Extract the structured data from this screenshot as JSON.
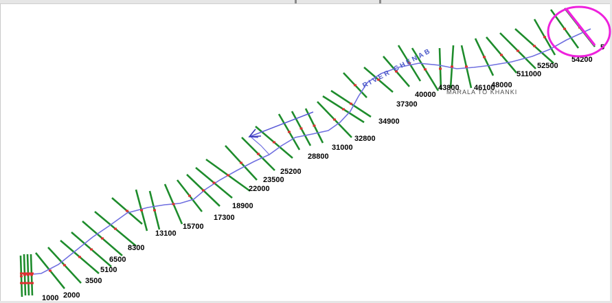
{
  "colors": {
    "river": "#6f6fe0",
    "section": "#1e8c2c",
    "marker": "#e03030",
    "highlight": "#ee22dd",
    "label": "#000000"
  },
  "labels": {
    "river_name": "RIVER CHENAB",
    "place_name": "MARALA TO KHANKI",
    "edge_fragment": "5"
  },
  "stations": [
    {
      "label": "1000"
    },
    {
      "label": "2000"
    },
    {
      "label": "3500"
    },
    {
      "label": "5100"
    },
    {
      "label": "6500"
    },
    {
      "label": "8300"
    },
    {
      "label": "13100"
    },
    {
      "label": "15700"
    },
    {
      "label": "17300"
    },
    {
      "label": "18900"
    },
    {
      "label": "22000"
    },
    {
      "label": "23500"
    },
    {
      "label": "25200"
    },
    {
      "label": "28800"
    },
    {
      "label": "31000"
    },
    {
      "label": "32800"
    },
    {
      "label": "34900"
    },
    {
      "label": "37300"
    },
    {
      "label": "40000"
    },
    {
      "label": "43800"
    },
    {
      "label": "46100"
    },
    {
      "label": "48000"
    },
    {
      "label": "511000"
    },
    {
      "label": "52500"
    },
    {
      "label": "54200"
    }
  ]
}
